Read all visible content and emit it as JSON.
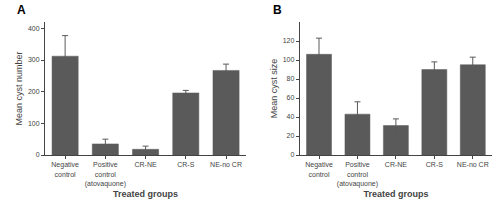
{
  "chart_data": [
    {
      "type": "bar",
      "title": "A",
      "categories": [
        "Negative\ncontrol",
        "Positive\ncontrol\n(atovaquone)",
        "CR-NE",
        "CR-S",
        "NE-no CR"
      ],
      "values": [
        312,
        35,
        18,
        196,
        267
      ],
      "errors": [
        65,
        15,
        10,
        8,
        20
      ],
      "xlabel": "Treated groups",
      "ylabel": "Mean cyst number",
      "ylim": [
        0,
        420
      ],
      "yticks": [
        0,
        100,
        200,
        300,
        400
      ],
      "color": "#5a5a5a",
      "grid": false
    },
    {
      "type": "bar",
      "title": "B",
      "categories": [
        "Negative\ncontrol",
        "Positive\ncontrol\n(atovaquone)",
        "CR-NE",
        "CR-S",
        "NE-no CR"
      ],
      "values": [
        106,
        43,
        31,
        90,
        95
      ],
      "errors": [
        17,
        13,
        7,
        8,
        8
      ],
      "xlabel": "Treated groups",
      "ylabel": "Mean cyst size",
      "ylim": [
        0,
        140
      ],
      "yticks": [
        0,
        20,
        40,
        60,
        80,
        100,
        120
      ],
      "color": "#5a5a5a",
      "grid": false
    }
  ]
}
